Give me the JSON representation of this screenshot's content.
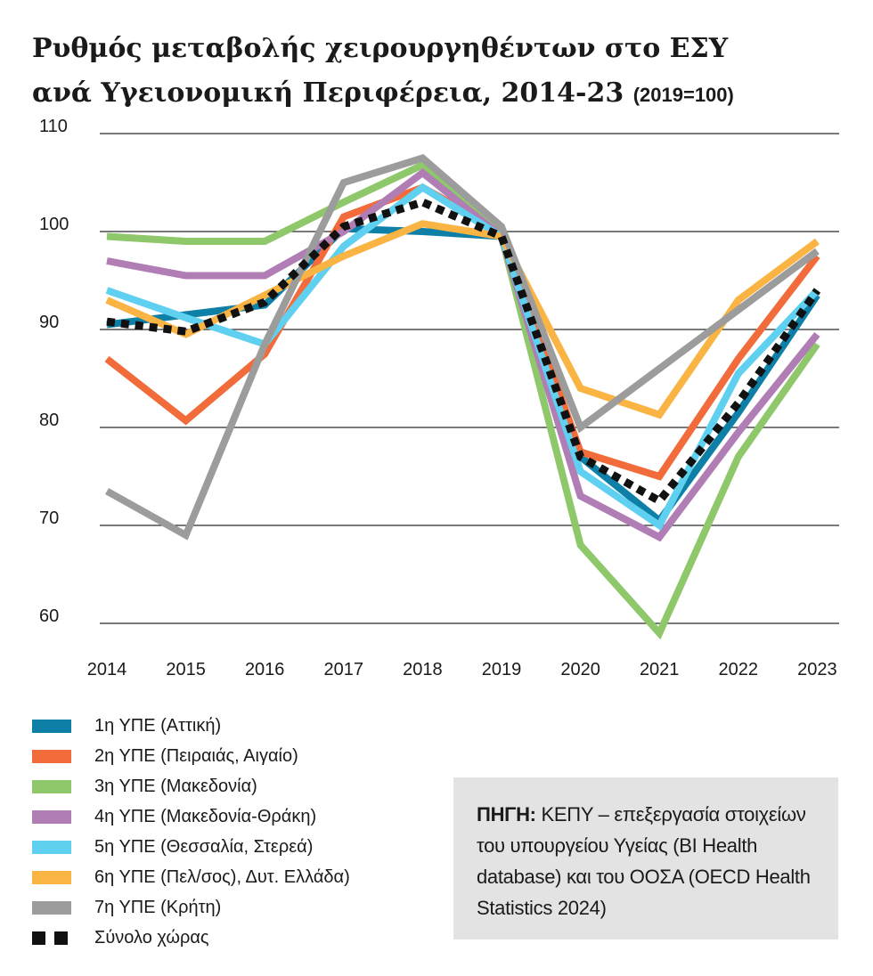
{
  "title": {
    "line1": "Ρυθμός μεταβολής χειρουργηθέντων στο ΕΣΥ",
    "line2": "ανά Υγειονομική Περιφέρεια, 2014-23",
    "note": "(2019=100)"
  },
  "source": {
    "label": "ΠΗΓΗ:",
    "text": "ΚΕΠΥ – επεξεργασία στοιχείων του υπουργείου Υγείας (BI Health database) και του ΟΟΣΑ (OECD Health Statistics 2024)"
  },
  "chart_data": {
    "type": "line",
    "title": "Ρυθμός μεταβολής χειρουργηθέντων στο ΕΣΥ ανά Υγειονομική Περιφέρεια, 2014-23 (2019=100)",
    "x": [
      "2014",
      "2015",
      "2016",
      "2017",
      "2018",
      "2019",
      "2020",
      "2021",
      "2022",
      "2023"
    ],
    "ylim": [
      60,
      110
    ],
    "yticks": [
      60,
      70,
      80,
      90,
      100,
      110
    ],
    "grid": "horizontal",
    "legend": "bottom-left",
    "series": [
      {
        "name": "1η ΥΠΕ (Αττική)",
        "color": "#0e7fa6",
        "values": [
          90.5,
          91.5,
          92.5,
          100.3,
          100,
          99.5,
          77,
          70.5,
          81.5,
          93.5
        ]
      },
      {
        "name": "2η ΥΠΕ (Πειραιάς, Αιγαίο)",
        "color": "#f26b3a",
        "values": [
          87,
          80.7,
          87.5,
          101.5,
          104.5,
          100,
          77.5,
          75,
          87,
          97.5
        ]
      },
      {
        "name": "3η ΥΠΕ (Μακεδονία)",
        "color": "#8ec86a",
        "values": [
          99.5,
          99,
          99,
          103,
          106.8,
          99.5,
          68,
          59,
          77,
          88.5
        ]
      },
      {
        "name": "4η ΥΠΕ (Μακεδονία-Θράκη)",
        "color": "#b07db5",
        "values": [
          97,
          95.5,
          95.5,
          100,
          106,
          99.5,
          73,
          68.8,
          79.5,
          89.5
        ]
      },
      {
        "name": "5η ΥΠΕ (Θεσσαλία, Στερεά)",
        "color": "#5fd0f0",
        "values": [
          94,
          91.2,
          88.5,
          98.5,
          104.5,
          99.5,
          75.5,
          70,
          85.5,
          94
        ]
      },
      {
        "name": "6η ΥΠΕ (Πελ/σος), Δυτ. Ελλάδα)",
        "color": "#f9b443",
        "values": [
          93,
          89.5,
          93.5,
          97.5,
          100.8,
          99.5,
          84,
          81.3,
          93,
          99
        ]
      },
      {
        "name": "7η ΥΠΕ (Κρήτη)",
        "color": "#9c9c9c",
        "values": [
          73.5,
          69,
          88.5,
          105,
          107.5,
          100.5,
          80,
          86,
          92,
          98
        ]
      },
      {
        "name": "Σύνολο χώρας",
        "color": "#111111",
        "style": "dotted",
        "values": [
          90.8,
          89.8,
          92.8,
          100.5,
          103,
          99.5,
          77,
          72.5,
          82.5,
          94
        ]
      }
    ]
  }
}
